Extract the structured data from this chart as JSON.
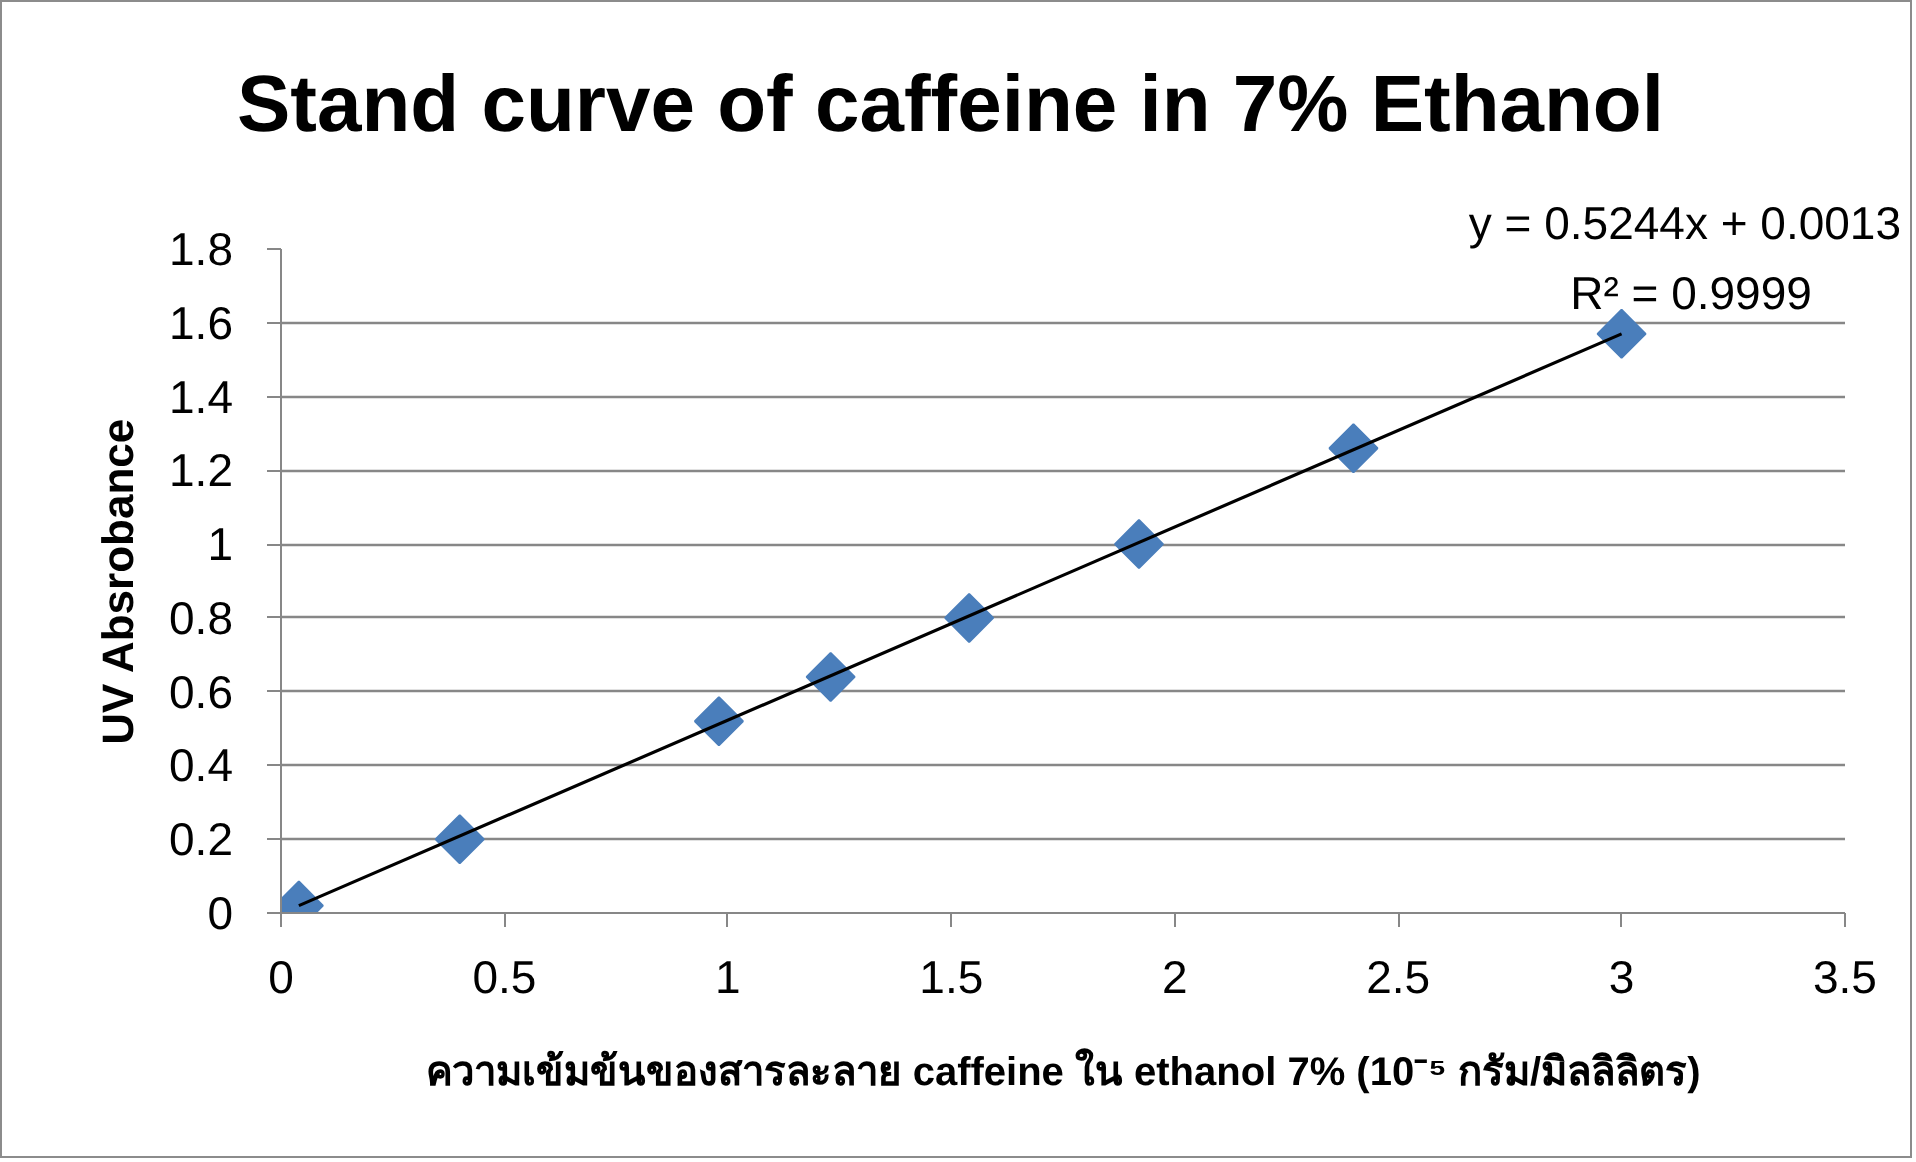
{
  "chart_data": {
    "type": "scatter",
    "title": "Stand curve of caffeine in 7% Ethanol",
    "xlabel": "ความเข้มข้นของสารละลาย caffeine ใน ethanol 7% (10⁻⁵ กรัม/มิลลิลิตร)",
    "ylabel": "UV Absrobance",
    "x": [
      0.04,
      0.4,
      0.98,
      1.23,
      1.54,
      1.92,
      2.4,
      3.0
    ],
    "series": [
      {
        "color": "#4a7ebb",
        "marker": "diamond",
        "values": [
          0.02,
          0.2,
          0.52,
          0.64,
          0.8,
          1.0,
          1.26,
          1.57
        ]
      },
      {
        "type": "line",
        "color": "#000000",
        "marker": "none",
        "x": [
          0.04,
          3.0
        ],
        "values": [
          0.02,
          1.57
        ]
      }
    ],
    "annotations": [
      "y = 0.5244x + 0.0013",
      "R² = 0.9999"
    ],
    "xlim": [
      0,
      3.5
    ],
    "xticks": [
      0,
      0.5,
      1,
      1.5,
      2,
      2.5,
      3,
      3.5
    ],
    "ylim": [
      0,
      1.8
    ],
    "yticks": [
      0,
      0.2,
      0.4,
      0.6,
      0.8,
      1,
      1.2,
      1.4,
      1.6,
      1.8
    ],
    "grid": "y"
  }
}
